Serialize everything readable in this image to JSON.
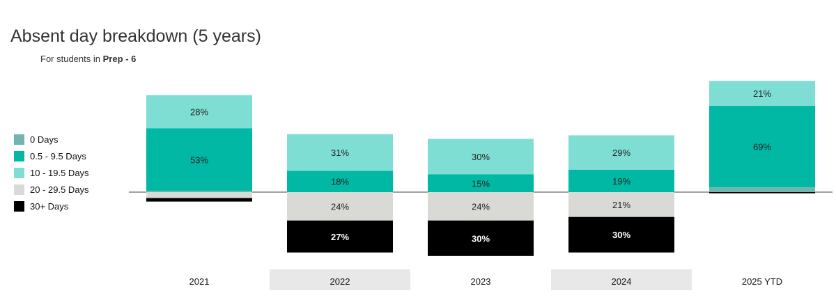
{
  "title": "Absent day breakdown (5 years)",
  "subtitle": {
    "prefix": "For students in",
    "group": "Prep - 6"
  },
  "colors": {
    "0 Days": "#72b5b0",
    "0.5 - 9.5 Days": "#00b8a3",
    "10 - 19.5 Days": "#7fded4",
    "20 - 29.5 Days": "#d9d9d6",
    "30+ Days": "#000000"
  },
  "legend": [
    {
      "label": "0 Days",
      "color": "#72b5b0"
    },
    {
      "label": "0.5 - 9.5 Days",
      "color": "#00b8a3"
    },
    {
      "label": "10 - 19.5 Days",
      "color": "#7fded4"
    },
    {
      "label": "20 - 29.5 Days",
      "color": "#d9d9d6"
    },
    {
      "label": "30+ Days",
      "color": "#000000"
    }
  ],
  "chart_data": {
    "type": "bar",
    "stacking": "diverging",
    "categories": [
      "2021",
      "2022",
      "2023",
      "2024",
      "2025 YTD"
    ],
    "highlighted_categories": [
      "2022",
      "2024"
    ],
    "legend_position": "left",
    "grid": false,
    "series": [
      {
        "name": "0 Days",
        "position": "above",
        "values": [
          1,
          0,
          0,
          0,
          4
        ],
        "labels": [
          "",
          "",
          "",
          "",
          ""
        ]
      },
      {
        "name": "0.5 - 9.5 Days",
        "position": "above",
        "values": [
          53,
          18,
          15,
          19,
          69
        ],
        "labels": [
          "53%",
          "18%",
          "15%",
          "19%",
          "69%"
        ]
      },
      {
        "name": "10 - 19.5 Days",
        "position": "above",
        "values": [
          28,
          31,
          30,
          29,
          21
        ],
        "labels": [
          "28%",
          "31%",
          "30%",
          "29%",
          "21%"
        ]
      },
      {
        "name": "20 - 29.5 Days",
        "position": "below",
        "values": [
          5,
          24,
          24,
          21,
          0
        ],
        "labels": [
          "",
          "24%",
          "24%",
          "21%",
          ""
        ]
      },
      {
        "name": "30+ Days",
        "position": "below",
        "values": [
          3,
          27,
          30,
          30,
          1
        ],
        "labels": [
          "",
          "27%",
          "30%",
          "30%",
          ""
        ]
      }
    ]
  }
}
